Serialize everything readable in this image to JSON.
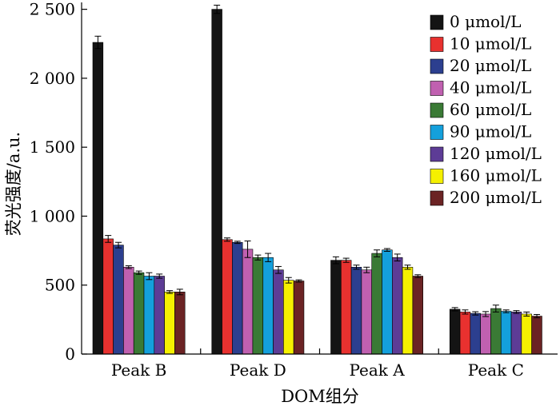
{
  "chart_data": {
    "type": "bar",
    "title": "",
    "xlabel": "DOM组分",
    "ylabel": "荧光强度/a.u.",
    "ylim": [
      0,
      2550
    ],
    "yticks": [
      0,
      500,
      1000,
      1500,
      2000,
      2500
    ],
    "ytick_labels": [
      "0",
      "500",
      "1 000",
      "1 500",
      "2 000",
      "2 500"
    ],
    "grid": false,
    "legend_position": "top-right",
    "categories": [
      "Peak B",
      "Peak D",
      "Peak A",
      "Peak C"
    ],
    "series": [
      {
        "name": "0 μmol/L",
        "color": "#141414",
        "values": [
          2260,
          2500,
          680,
          325
        ],
        "errors": [
          45,
          30,
          25,
          12
        ]
      },
      {
        "name": "10 μmol/L",
        "color": "#e8312f",
        "values": [
          835,
          830,
          680,
          305
        ],
        "errors": [
          25,
          12,
          15,
          15
        ]
      },
      {
        "name": "20 μmol/L",
        "color": "#2c3f8f",
        "values": [
          790,
          810,
          630,
          295
        ],
        "errors": [
          20,
          8,
          15,
          12
        ]
      },
      {
        "name": "40 μmol/L",
        "color": "#c060b0",
        "values": [
          630,
          760,
          610,
          290
        ],
        "errors": [
          10,
          60,
          20,
          18
        ]
      },
      {
        "name": "60 μmol/L",
        "color": "#3a7a35",
        "values": [
          590,
          700,
          730,
          330
        ],
        "errors": [
          12,
          18,
          25,
          25
        ]
      },
      {
        "name": "90 μmol/L",
        "color": "#14a0dc",
        "values": [
          565,
          700,
          755,
          310
        ],
        "errors": [
          25,
          30,
          10,
          10
        ]
      },
      {
        "name": "120 μmol/L",
        "color": "#5d3c96",
        "values": [
          565,
          610,
          700,
          305
        ],
        "errors": [
          15,
          25,
          25,
          10
        ]
      },
      {
        "name": "160 μmol/L",
        "color": "#f5f000",
        "values": [
          450,
          535,
          630,
          290
        ],
        "errors": [
          10,
          20,
          15,
          15
        ]
      },
      {
        "name": "200 μmol/L",
        "color": "#6b2324",
        "values": [
          450,
          530,
          565,
          275
        ],
        "errors": [
          20,
          8,
          10,
          12
        ]
      }
    ]
  }
}
